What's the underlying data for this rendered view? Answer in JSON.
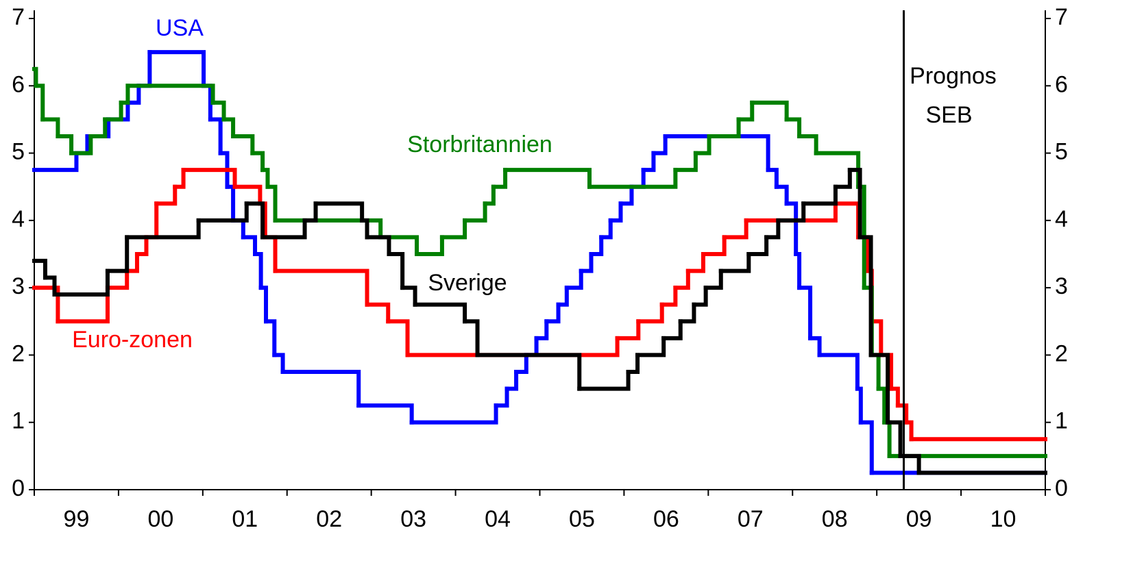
{
  "chart_data": {
    "type": "step",
    "categories": [
      "99",
      "00",
      "01",
      "02",
      "03",
      "04",
      "05",
      "06",
      "07",
      "08",
      "09",
      "10"
    ],
    "xlim": [
      1999,
      2011
    ],
    "ylim": [
      0,
      7
    ],
    "yticks": [
      0,
      1,
      2,
      3,
      4,
      5,
      6,
      7
    ],
    "forecast": {
      "x": 2009.32,
      "label_lines": [
        "Prognos",
        "SEB"
      ],
      "color": "#000000"
    },
    "series": [
      {
        "name": "USA",
        "color": "#0000ff",
        "x": [
          1999.0,
          1999.5,
          1999.63,
          1999.88,
          2000.11,
          2000.24,
          2000.37,
          2001.01,
          2001.09,
          2001.21,
          2001.29,
          2001.36,
          2001.48,
          2001.62,
          2001.69,
          2001.75,
          2001.85,
          2001.95,
          2002.85,
          2003.48,
          2004.48,
          2004.61,
          2004.72,
          2004.84,
          2004.96,
          2005.08,
          2005.22,
          2005.32,
          2005.49,
          2005.61,
          2005.73,
          2005.84,
          2005.96,
          2006.09,
          2006.23,
          2006.35,
          2006.49,
          2007.71,
          2007.81,
          2007.93,
          2008.04,
          2008.08,
          2008.21,
          2008.32,
          2008.77,
          2008.81,
          2008.94
        ],
        "values": [
          4.75,
          5.0,
          5.25,
          5.5,
          5.75,
          6.0,
          6.5,
          6.0,
          5.5,
          5.0,
          4.5,
          4.0,
          3.75,
          3.5,
          3.0,
          2.5,
          2.0,
          1.75,
          1.25,
          1.0,
          1.25,
          1.5,
          1.75,
          2.0,
          2.25,
          2.5,
          2.75,
          3.0,
          3.25,
          3.5,
          3.75,
          4.0,
          4.25,
          4.5,
          4.75,
          5.0,
          5.25,
          4.75,
          4.5,
          4.25,
          3.5,
          3.0,
          2.25,
          2.0,
          1.5,
          1.0,
          0.25
        ]
      },
      {
        "name": "Euro-zonen",
        "color": "#ff0000",
        "x": [
          1999.0,
          1999.28,
          1999.87,
          2000.1,
          2000.22,
          2000.33,
          2000.45,
          2000.67,
          2000.77,
          2001.38,
          2001.68,
          2001.74,
          2001.86,
          2002.95,
          2003.2,
          2003.43,
          2005.92,
          2006.17,
          2006.45,
          2006.61,
          2006.76,
          2006.94,
          2007.19,
          2007.45,
          2008.51,
          2008.78,
          2008.89,
          2008.94,
          2009.05,
          2009.17,
          2009.25,
          2009.35,
          2009.41
        ],
        "values": [
          3.0,
          2.5,
          3.0,
          3.25,
          3.5,
          3.75,
          4.25,
          4.5,
          4.75,
          4.5,
          4.25,
          3.75,
          3.25,
          2.75,
          2.5,
          2.0,
          2.25,
          2.5,
          2.75,
          3.0,
          3.25,
          3.5,
          3.75,
          4.0,
          4.25,
          3.75,
          3.25,
          2.5,
          2.0,
          1.5,
          1.25,
          1.0,
          0.75
        ]
      },
      {
        "name": "Storbritannien",
        "color": "#008000",
        "x": [
          1999.0,
          1999.02,
          1999.1,
          1999.28,
          1999.44,
          1999.67,
          1999.84,
          2000.03,
          2000.11,
          2001.12,
          2001.25,
          2001.36,
          2001.59,
          2001.71,
          2001.77,
          2001.86,
          2003.11,
          2003.54,
          2003.84,
          2004.11,
          2004.35,
          2004.45,
          2004.59,
          2005.59,
          2006.61,
          2006.85,
          2007.01,
          2007.36,
          2007.52,
          2007.93,
          2008.08,
          2008.28,
          2008.78,
          2008.85,
          2008.94,
          2009.02,
          2009.09,
          2009.15
        ],
        "values": [
          6.25,
          6.0,
          5.5,
          5.25,
          5.0,
          5.25,
          5.5,
          5.75,
          6.0,
          5.75,
          5.5,
          5.25,
          5.0,
          4.75,
          4.5,
          4.0,
          3.75,
          3.5,
          3.75,
          4.0,
          4.25,
          4.5,
          4.75,
          4.5,
          4.75,
          5.0,
          5.25,
          5.5,
          5.75,
          5.5,
          5.25,
          5.0,
          4.5,
          3.0,
          2.0,
          1.5,
          1.0,
          0.5
        ]
      },
      {
        "name": "Sverige",
        "color": "#000000",
        "x": [
          1999.0,
          1999.13,
          1999.24,
          1999.87,
          2000.1,
          2000.95,
          2001.52,
          2001.71,
          2002.21,
          2002.34,
          2002.89,
          2002.95,
          2003.21,
          2003.37,
          2003.52,
          2004.11,
          2004.26,
          2005.47,
          2006.05,
          2006.16,
          2006.47,
          2006.67,
          2006.83,
          2006.97,
          2007.15,
          2007.48,
          2007.69,
          2007.83,
          2008.13,
          2008.51,
          2008.68,
          2008.8,
          2008.93,
          2009.13,
          2009.28,
          2009.5
        ],
        "values": [
          3.4,
          3.15,
          2.9,
          3.25,
          3.75,
          4.0,
          4.25,
          3.75,
          4.0,
          4.25,
          4.0,
          3.75,
          3.5,
          3.0,
          2.75,
          2.5,
          2.0,
          1.5,
          1.75,
          2.0,
          2.25,
          2.5,
          2.75,
          3.0,
          3.25,
          3.5,
          3.75,
          4.0,
          4.25,
          4.5,
          4.75,
          3.75,
          2.0,
          1.0,
          0.5,
          0.25
        ]
      }
    ]
  }
}
